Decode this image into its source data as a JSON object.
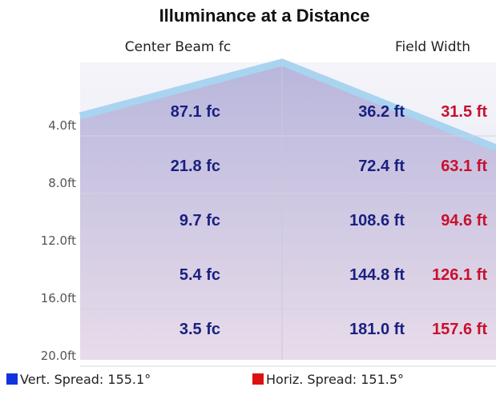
{
  "title": "Illuminance at a Distance",
  "headers": {
    "center": "Center Beam fc",
    "field": "Field Width"
  },
  "rows": [
    {
      "distance": "4.0ft",
      "fc": "87.1 fc",
      "vert": "36.2 ft",
      "horiz": "31.5 ft"
    },
    {
      "distance": "8.0ft",
      "fc": "21.8 fc",
      "vert": "72.4 ft",
      "horiz": "63.1 ft"
    },
    {
      "distance": "12.0ft",
      "fc": "9.7 fc",
      "vert": "108.6 ft",
      "horiz": "94.6 ft"
    },
    {
      "distance": "16.0ft",
      "fc": "5.4 fc",
      "vert": "144.8 ft",
      "horiz": "126.1 ft"
    },
    {
      "distance": "20.0ft",
      "fc": "3.5 fc",
      "vert": "181.0 ft",
      "horiz": "157.6 ft"
    }
  ],
  "legend": {
    "vert": "Vert. Spread: 155.1°",
    "horiz": "Horiz. Spread: 151.5°"
  }
}
